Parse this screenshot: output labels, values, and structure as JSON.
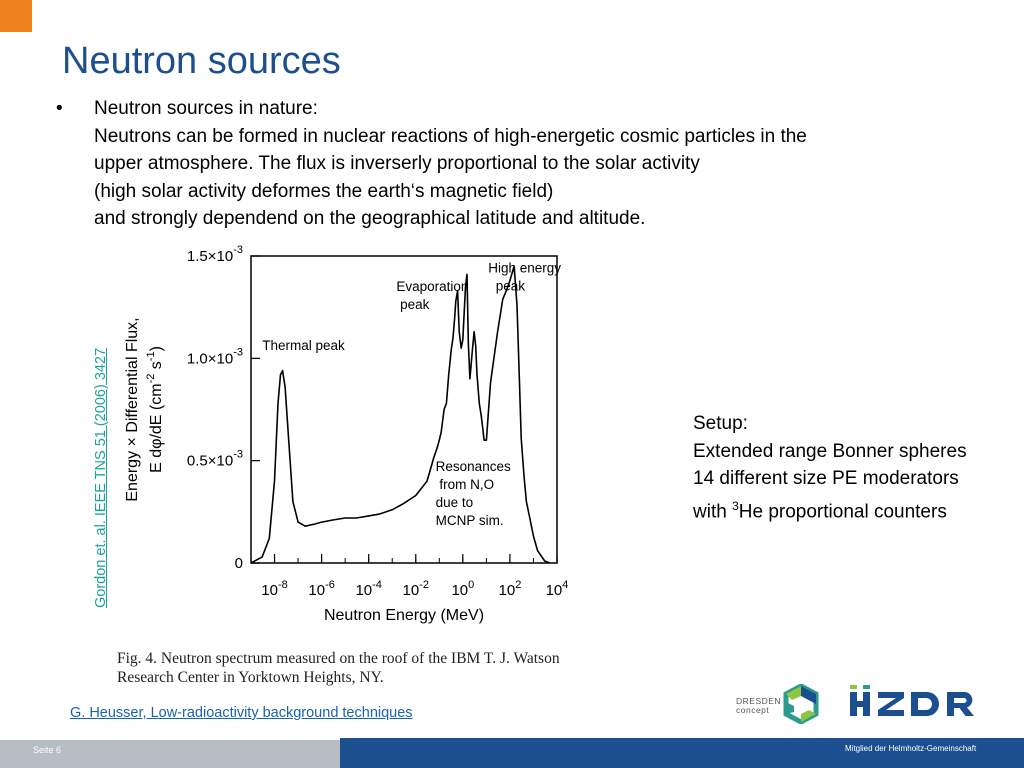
{
  "slide": {
    "title": "Neutron sources",
    "bullet_symbol": "•",
    "bullet_lines": [
      "Neutron sources in nature:",
      "Neutrons can be formed in nuclear reactions of high-energetic cosmic particles in the",
      "upper atmosphere. The flux is inverserly proportional to the solar activity",
      "(high solar activity deformes the earth‘s magnetic field)",
      "and strongly dependend on the geographical latitude and altitude."
    ],
    "vertical_reference": "Gordon et. al. IEEE TNS 51 (2006) 3427",
    "setup": {
      "line1": "Setup:",
      "line2": "Extended range Bonner spheres",
      "line3": "14 different size PE moderators",
      "line4_prefix": "with ",
      "line4_sup": "3",
      "line4_suffix": "He proportional  counters"
    },
    "caption_lines": [
      "Fig. 4.   Neutron spectrum measured on the roof of the IBM T. J. Watson",
      "Research Center in Yorktown Heights, NY."
    ],
    "footer_reference": "G. Heusser, Low-radioactivity background techniques",
    "page_label": "Seite 6",
    "member_label": "Mitglied der Helmholtz-Gemeinschaft",
    "dresden_logo": {
      "line1": "DRESDEN",
      "line2": "concept"
    },
    "hzdr_logo": "HZDR",
    "colors": {
      "title": "#1d4f8f",
      "accent_orange": "#f0821e",
      "footer_blue": "#1c4f8f",
      "footer_grey": "#b6bdc3",
      "reference_teal": "#1aa39a",
      "link_blue": "#1a63b0"
    }
  },
  "chart_data": {
    "type": "line",
    "x_scale": "log",
    "xlabel": "Neutron Energy  (MeV)",
    "ylabel_line1": "Energy × Differential Flux,",
    "ylabel_line2_prefix": "E dφ/dE  (cm",
    "ylabel_sup1": "-2",
    "ylabel_mid": " s",
    "ylabel_sup2": "-1",
    "ylabel_suffix": ")",
    "xlim": [
      1e-09,
      10000.0
    ],
    "ylim": [
      0,
      0.0015
    ],
    "x_ticks": [
      {
        "value": 1e-08,
        "base": "10",
        "exp": "-8"
      },
      {
        "value": 1e-06,
        "base": "10",
        "exp": "-6"
      },
      {
        "value": 0.0001,
        "base": "10",
        "exp": "-4"
      },
      {
        "value": 0.01,
        "base": "10",
        "exp": "-2"
      },
      {
        "value": 1,
        "base": "10",
        "exp": "0"
      },
      {
        "value": 100,
        "base": "10",
        "exp": "2"
      },
      {
        "value": 10000,
        "base": "10",
        "exp": "4"
      }
    ],
    "y_ticks": [
      {
        "value": 0,
        "label": "0",
        "exp": ""
      },
      {
        "value": 0.0005,
        "label": "0.5×10",
        "exp": "-3"
      },
      {
        "value": 0.001,
        "label": "1.0×10",
        "exp": "-3"
      },
      {
        "value": 0.0015,
        "label": "1.5×10",
        "exp": "-3"
      }
    ],
    "annotations": [
      {
        "lines": [
          "Thermal peak"
        ],
        "x": 3e-09,
        "y": 0.00104
      },
      {
        "lines": [
          "Evaporation",
          " peak"
        ],
        "x": 0.0015,
        "y": 0.00133
      },
      {
        "lines": [
          "High energy",
          "  peak"
        ],
        "x": 12,
        "y": 0.00142
      },
      {
        "lines": [
          "Resonances",
          " from N,O",
          "due to",
          "MCNP sim."
        ],
        "x": 0.07,
        "y": 0.00045
      }
    ],
    "series": [
      {
        "values": [
          [
            1e-09,
            0.0
          ],
          [
            3e-09,
            3e-05
          ],
          [
            6e-09,
            0.00012
          ],
          [
            1e-08,
            0.0004
          ],
          [
            1.4e-08,
            0.00078
          ],
          [
            1.8e-08,
            0.00092
          ],
          [
            2.2e-08,
            0.00094
          ],
          [
            2.8e-08,
            0.00086
          ],
          [
            4e-08,
            0.0006
          ],
          [
            6e-08,
            0.0003
          ],
          [
            1e-07,
            0.0002
          ],
          [
            2e-07,
            0.00018
          ],
          [
            5e-07,
            0.00019
          ],
          [
            1e-06,
            0.0002
          ],
          [
            3e-06,
            0.00021
          ],
          [
            1e-05,
            0.00022
          ],
          [
            3e-05,
            0.00022
          ],
          [
            0.0001,
            0.00023
          ],
          [
            0.0003,
            0.00024
          ],
          [
            0.001,
            0.00026
          ],
          [
            0.003,
            0.00029
          ],
          [
            0.01,
            0.00033
          ],
          [
            0.03,
            0.0004
          ],
          [
            0.06,
            0.00052
          ],
          [
            0.08,
            0.00056
          ],
          [
            0.1,
            0.0006
          ],
          [
            0.12,
            0.00064
          ],
          [
            0.16,
            0.00075
          ],
          [
            0.2,
            0.00078
          ],
          [
            0.25,
            0.00092
          ],
          [
            0.32,
            0.00104
          ],
          [
            0.38,
            0.0011
          ],
          [
            0.45,
            0.0012
          ],
          [
            0.5,
            0.00128
          ],
          [
            0.6,
            0.00133
          ],
          [
            0.7,
            0.00113
          ],
          [
            0.85,
            0.00105
          ],
          [
            1.0,
            0.00109
          ],
          [
            1.3,
            0.00135
          ],
          [
            1.5,
            0.00141
          ],
          [
            1.7,
            0.00108
          ],
          [
            2.0,
            0.0009
          ],
          [
            2.5,
            0.00103
          ],
          [
            3.0,
            0.00113
          ],
          [
            3.5,
            0.00106
          ],
          [
            4.0,
            0.00092
          ],
          [
            5.0,
            0.00078
          ],
          [
            6.0,
            0.00072
          ],
          [
            7.0,
            0.00066
          ],
          [
            8.0,
            0.0006
          ],
          [
            10,
            0.0006
          ],
          [
            15,
            0.00088
          ],
          [
            30,
            0.00113
          ],
          [
            50,
            0.00129
          ],
          [
            70,
            0.00133
          ],
          [
            100,
            0.00138
          ],
          [
            150,
            0.00145
          ],
          [
            200,
            0.00126
          ],
          [
            250,
            0.00091
          ],
          [
            300,
            0.00061
          ],
          [
            400,
            0.00042
          ],
          [
            500,
            0.0003
          ],
          [
            700,
            0.00022
          ],
          [
            1000,
            0.00013
          ],
          [
            1500,
            6e-05
          ],
          [
            3000,
            1e-05
          ],
          [
            5000,
            0.0
          ]
        ]
      }
    ]
  }
}
